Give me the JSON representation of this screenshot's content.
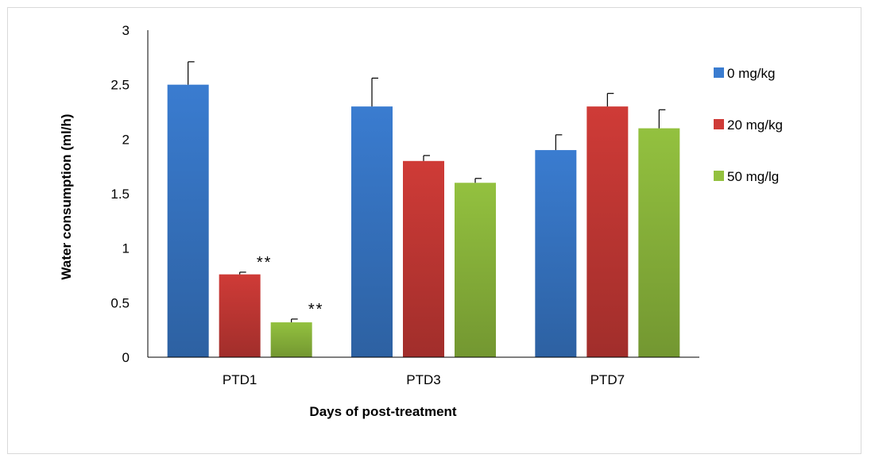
{
  "chart_data": {
    "type": "bar",
    "title": "",
    "xlabel": "Days of post-treatment",
    "ylabel": "Water consumption (ml/h)",
    "categories": [
      "PTD1",
      "PTD3",
      "PTD7"
    ],
    "ylim": [
      0,
      3
    ],
    "yticks": [
      "0",
      "0.5",
      "1",
      "1.5",
      "2",
      "2.5",
      "3"
    ],
    "grid": false,
    "legend_position": "right",
    "series": [
      {
        "name": "0 mg/kg",
        "color": "#3a7cd0",
        "values": [
          2.5,
          2.3,
          1.9
        ],
        "errors": [
          0.21,
          0.26,
          0.14
        ]
      },
      {
        "name": "20 mg/kg",
        "color": "#cf3b37",
        "values": [
          0.76,
          1.8,
          2.3
        ],
        "errors": [
          0.02,
          0.05,
          0.12
        ]
      },
      {
        "name": "50 mg/lg",
        "color": "#93c13f",
        "values": [
          0.32,
          1.6,
          2.1
        ],
        "errors": [
          0.03,
          0.04,
          0.17
        ]
      }
    ],
    "annotations": [
      {
        "text": "**",
        "category": "PTD1",
        "series": "20 mg/kg"
      },
      {
        "text": "**",
        "category": "PTD1",
        "series": "50 mg/lg"
      }
    ]
  }
}
